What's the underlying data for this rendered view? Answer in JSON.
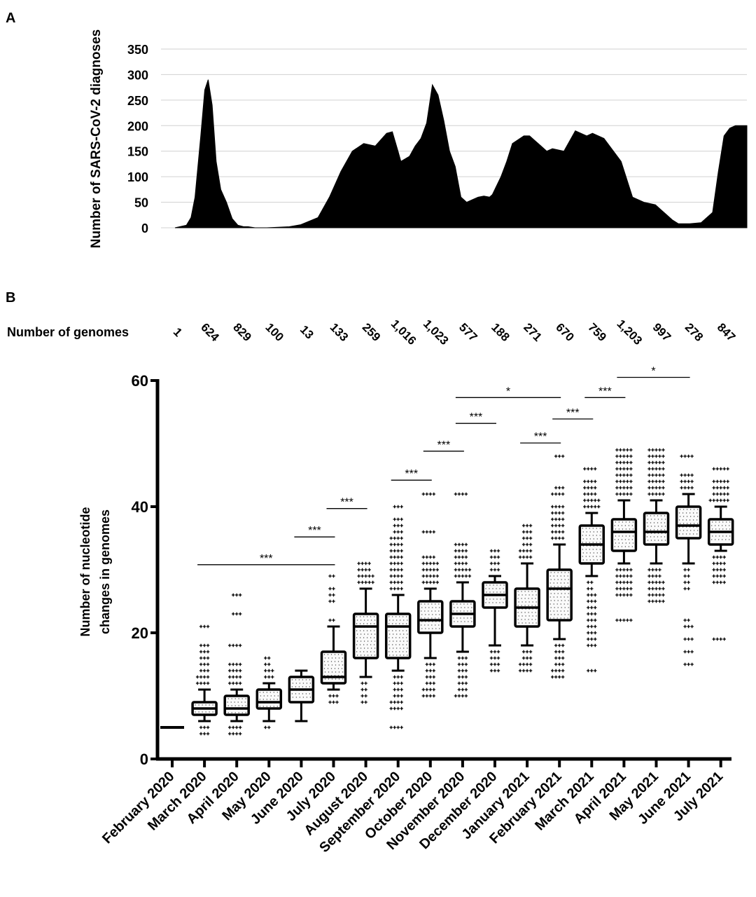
{
  "chart_data": [
    {
      "panel": "A",
      "type": "area",
      "ylabel": "Number of SARS-CoV-2  diagnoses",
      "xlabel": "",
      "yticks": [
        0,
        50,
        100,
        150,
        200,
        250,
        300,
        350
      ],
      "ylim": [
        0,
        350
      ],
      "grid": true,
      "color": "#000000",
      "series": [
        {
          "x": [
            0,
            0.02,
            0.028,
            0.035,
            0.045,
            0.052,
            0.058,
            0.065,
            0.072,
            0.08,
            0.09,
            0.1,
            0.11,
            0.12,
            0.128,
            0.14,
            0.16,
            0.2,
            0.22,
            0.25,
            0.27,
            0.29,
            0.31,
            0.33,
            0.35,
            0.37,
            0.38,
            0.39,
            0.395,
            0.41,
            0.42,
            0.43,
            0.44,
            0.45,
            0.46,
            0.47,
            0.48,
            0.49,
            0.5,
            0.51,
            0.52,
            0.53,
            0.54,
            0.55,
            0.555,
            0.57,
            0.58,
            0.59,
            0.61,
            0.62,
            0.64,
            0.65,
            0.66,
            0.68,
            0.7,
            0.72,
            0.73,
            0.75,
            0.78,
            0.8,
            0.82,
            0.84,
            0.85,
            0.86,
            0.87,
            0.88,
            0.9,
            0.92,
            0.94,
            0.95,
            0.96,
            0.97,
            0.98,
            1.0
          ],
          "y": [
            0,
            5,
            20,
            60,
            180,
            270,
            290,
            240,
            130,
            75,
            50,
            18,
            5,
            2,
            2,
            0,
            0,
            2,
            6,
            20,
            60,
            110,
            150,
            165,
            160,
            185,
            188,
            150,
            130,
            140,
            160,
            175,
            205,
            280,
            260,
            210,
            150,
            120,
            60,
            50,
            55,
            60,
            62,
            60,
            65,
            100,
            130,
            165,
            180,
            180,
            160,
            150,
            155,
            150,
            190,
            180,
            185,
            175,
            130,
            60,
            50,
            45,
            35,
            25,
            15,
            8,
            8,
            10,
            30,
            110,
            180,
            195,
            200,
            200
          ]
        }
      ]
    },
    {
      "panel": "B",
      "type": "box",
      "ylabel_lines": [
        "Number of nucleotide",
        "changes in genomes"
      ],
      "ylim": [
        0,
        60
      ],
      "yticks": [
        0,
        20,
        40,
        60
      ],
      "genomes_label": "Number of genomes",
      "categories": [
        "February 2020",
        "March 2020",
        "April 2020",
        "May 2020",
        "June 2020",
        "July 2020",
        "August 2020",
        "September 2020",
        "October 2020",
        "November 2020",
        "December 2020",
        "January 2021",
        "February 2021",
        "March 2021",
        "April 2021",
        "May 2021",
        "June 2021",
        "July 2021"
      ],
      "genomes": [
        "1",
        "624",
        "829",
        "100",
        "13",
        "133",
        "259",
        "1,016",
        "1,023",
        "577",
        "188",
        "271",
        "670",
        "759",
        "1,203",
        "997",
        "278",
        "847"
      ],
      "boxes": [
        {
          "single": 5
        },
        {
          "min": 6,
          "q1": 7,
          "median": 8,
          "q3": 9,
          "max": 11,
          "out_low": [
            4,
            5
          ],
          "out_high": [
            12,
            13,
            14,
            15,
            16,
            17,
            18,
            21
          ],
          "n_low": 6,
          "n_high": 26
        },
        {
          "min": 6,
          "q1": 7,
          "median": 8,
          "q3": 10,
          "max": 11,
          "out_low": [
            4,
            5
          ],
          "out_high": [
            12,
            13,
            14,
            15,
            18,
            23,
            26
          ],
          "n_low": 8,
          "n_high": 26
        },
        {
          "min": 6,
          "q1": 8,
          "median": 9,
          "q3": 11,
          "max": 12,
          "out_low": [
            5
          ],
          "out_high": [
            13,
            14,
            15,
            16
          ],
          "n_low": 2,
          "n_high": 10
        },
        {
          "min": 6,
          "q1": 9,
          "median": 11,
          "q3": 13,
          "max": 14
        },
        {
          "min": 11,
          "q1": 12,
          "median": 13,
          "q3": 17,
          "max": 21,
          "out_low": [
            9,
            10
          ],
          "out_high": [
            22,
            25,
            26,
            27,
            29
          ],
          "n_low": 6,
          "n_high": 10
        },
        {
          "min": 13,
          "q1": 16,
          "median": 21,
          "q3": 23,
          "max": 27,
          "out_low": [
            9,
            10,
            11,
            12
          ],
          "out_high": [
            28,
            29,
            30,
            31
          ],
          "n_low": 8,
          "n_high": 18
        },
        {
          "min": 14,
          "q1": 16,
          "median": 21,
          "q3": 23,
          "max": 26,
          "out_low": [
            5,
            8,
            9,
            10,
            11,
            12,
            13
          ],
          "out_high": [
            27,
            28,
            29,
            30,
            31,
            32,
            33,
            34,
            35,
            36,
            37,
            38,
            40
          ],
          "n_low": 24,
          "n_high": 48
        },
        {
          "min": 16,
          "q1": 20,
          "median": 22,
          "q3": 25,
          "max": 27,
          "out_low": [
            10,
            11,
            12,
            13,
            14,
            15
          ],
          "out_high": [
            28,
            29,
            30,
            31,
            32,
            36,
            42
          ],
          "n_low": 20,
          "n_high": 32
        },
        {
          "min": 17,
          "q1": 21,
          "median": 23,
          "q3": 25,
          "max": 28,
          "out_low": [
            10,
            11,
            12,
            13,
            14,
            15,
            16
          ],
          "out_high": [
            29,
            30,
            31,
            32,
            33,
            34,
            42
          ],
          "n_low": 22,
          "n_high": 30
        },
        {
          "min": 18,
          "q1": 24,
          "median": 26,
          "q3": 28,
          "max": 29,
          "out_low": [
            14,
            15,
            16,
            17
          ],
          "out_high": [
            30,
            31,
            32,
            33
          ],
          "n_low": 12,
          "n_high": 12
        },
        {
          "min": 18,
          "q1": 21,
          "median": 24,
          "q3": 27,
          "max": 31,
          "out_low": [
            14,
            15,
            16,
            17
          ],
          "out_high": [
            32,
            33,
            34,
            35,
            36,
            37
          ],
          "n_low": 14,
          "n_high": 20
        },
        {
          "min": 19,
          "q1": 22,
          "median": 27,
          "q3": 30,
          "max": 34,
          "out_low": [
            13,
            14,
            15,
            16,
            17,
            18
          ],
          "out_high": [
            35,
            36,
            37,
            38,
            39,
            40,
            42,
            43,
            48
          ],
          "n_low": 20,
          "n_high": 34
        },
        {
          "min": 29,
          "q1": 31,
          "median": 34,
          "q3": 37,
          "max": 39,
          "out_low": [
            14,
            18,
            19,
            20,
            21,
            22,
            23,
            24,
            25,
            26,
            27,
            28
          ],
          "out_high": [
            40,
            41,
            42,
            43,
            44,
            46
          ],
          "n_low": 34,
          "n_high": 26
        },
        {
          "min": 31,
          "q1": 33,
          "median": 36,
          "q3": 38,
          "max": 41,
          "out_low": [
            22,
            26,
            27,
            28,
            29,
            30
          ],
          "out_high": [
            42,
            43,
            44,
            45,
            46,
            47,
            48,
            49
          ],
          "n_low": 30,
          "n_high": 40
        },
        {
          "min": 31,
          "q1": 34,
          "median": 36,
          "q3": 39,
          "max": 41,
          "out_low": [
            25,
            26,
            27,
            28,
            29,
            30
          ],
          "out_high": [
            42,
            43,
            44,
            45,
            46,
            47,
            48,
            49
          ],
          "n_low": 28,
          "n_high": 40
        },
        {
          "min": 31,
          "q1": 35,
          "median": 37,
          "q3": 40,
          "max": 42,
          "out_low": [
            15,
            17,
            19,
            21,
            22,
            27,
            28,
            29,
            30
          ],
          "out_high": [
            43,
            44,
            45,
            48
          ],
          "n_low": 22,
          "n_high": 16
        },
        {
          "min": 33,
          "q1": 34,
          "median": 36,
          "q3": 38,
          "max": 40,
          "out_low": [
            19,
            28,
            29,
            30,
            31,
            32
          ],
          "out_high": [
            41,
            42,
            43,
            44,
            46
          ],
          "n_low": 24,
          "n_high": 26
        }
      ],
      "significance": [
        {
          "from": 1,
          "to": 5,
          "y": 30.8,
          "label": "***"
        },
        {
          "from": 4,
          "to": 5,
          "y": 35.2,
          "label": "***"
        },
        {
          "from": 5,
          "to": 6,
          "y": 39.7,
          "label": "***"
        },
        {
          "from": 7,
          "to": 8,
          "y": 44.2,
          "label": "***"
        },
        {
          "from": 8,
          "to": 9,
          "y": 48.8,
          "label": "***"
        },
        {
          "from": 9,
          "to": 10,
          "y": 53.2,
          "label": "***"
        },
        {
          "from": 9,
          "to": 12,
          "y": 57.3,
          "label": "*"
        },
        {
          "from": 11,
          "to": 12,
          "y": 50.1,
          "label": "***"
        },
        {
          "from": 12,
          "to": 13,
          "y": 53.9,
          "label": "***"
        },
        {
          "from": 13,
          "to": 14,
          "y": 57.3,
          "label": "***"
        },
        {
          "from": 14,
          "to": 16,
          "y": 60.5,
          "label": "*"
        }
      ]
    }
  ],
  "panel_labels": {
    "a": "A",
    "b": "B"
  }
}
